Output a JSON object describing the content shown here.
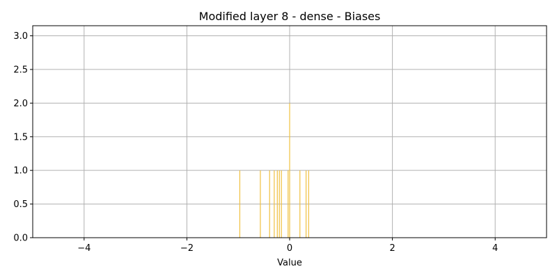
{
  "chart_data": {
    "type": "bar",
    "title": "Modified layer 8 - dense - Biases",
    "xlabel": "Value",
    "ylabel": "",
    "xlim": [
      -5,
      5
    ],
    "ylim": [
      0,
      3.15
    ],
    "xticks": [
      -4,
      -2,
      0,
      2,
      4
    ],
    "xtick_labels": [
      "−4",
      "−2",
      "0",
      "2",
      "4"
    ],
    "yticks": [
      0.0,
      0.5,
      1.0,
      1.5,
      2.0,
      2.5,
      3.0
    ],
    "ytick_labels": [
      "0.0",
      "0.5",
      "1.0",
      "1.5",
      "2.0",
      "2.5",
      "3.0"
    ],
    "grid": true,
    "bar_color": "#f0c040",
    "bins": [
      {
        "x": -0.97,
        "count": 1
      },
      {
        "x": -0.57,
        "count": 1
      },
      {
        "x": -0.39,
        "count": 1
      },
      {
        "x": -0.3,
        "count": 1
      },
      {
        "x": -0.24,
        "count": 1
      },
      {
        "x": -0.2,
        "count": 1
      },
      {
        "x": -0.16,
        "count": 1
      },
      {
        "x": -0.03,
        "count": 1
      },
      {
        "x": 0.0,
        "count": 2
      },
      {
        "x": 0.2,
        "count": 1
      },
      {
        "x": 0.32,
        "count": 1
      },
      {
        "x": 0.37,
        "count": 1
      }
    ]
  }
}
